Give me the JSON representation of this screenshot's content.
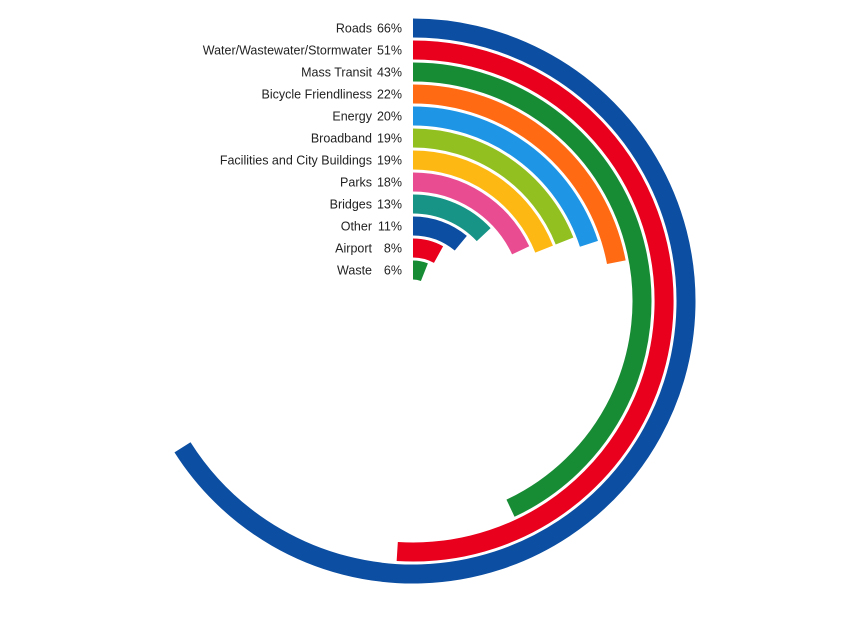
{
  "chart_data": {
    "type": "radial-bar",
    "title": "",
    "value_unit": "%",
    "max_value": 100,
    "categories": [
      "Roads",
      "Water/Wastewater/Stormwater",
      "Mass Transit",
      "Bicycle Friendliness",
      "Energy",
      "Broadband",
      "Facilities and City Buildings",
      "Parks",
      "Bridges",
      "Other",
      "Airport",
      "Waste"
    ],
    "values": [
      66,
      51,
      43,
      22,
      20,
      19,
      19,
      18,
      13,
      11,
      8,
      6
    ],
    "value_labels": [
      "66%",
      "51%",
      "43%",
      "22%",
      "20%",
      "19%",
      "19%",
      "18%",
      "13%",
      "11%",
      "8%",
      "6%"
    ],
    "colors": [
      "#0b4ea2",
      "#e8001c",
      "#178c35",
      "#ff6a13",
      "#1f95e6",
      "#92c020",
      "#fdb813",
      "#e94c91",
      "#179486",
      "#0b4ea2",
      "#e8001c",
      "#178c35"
    ],
    "legend": "none",
    "grid": false
  }
}
